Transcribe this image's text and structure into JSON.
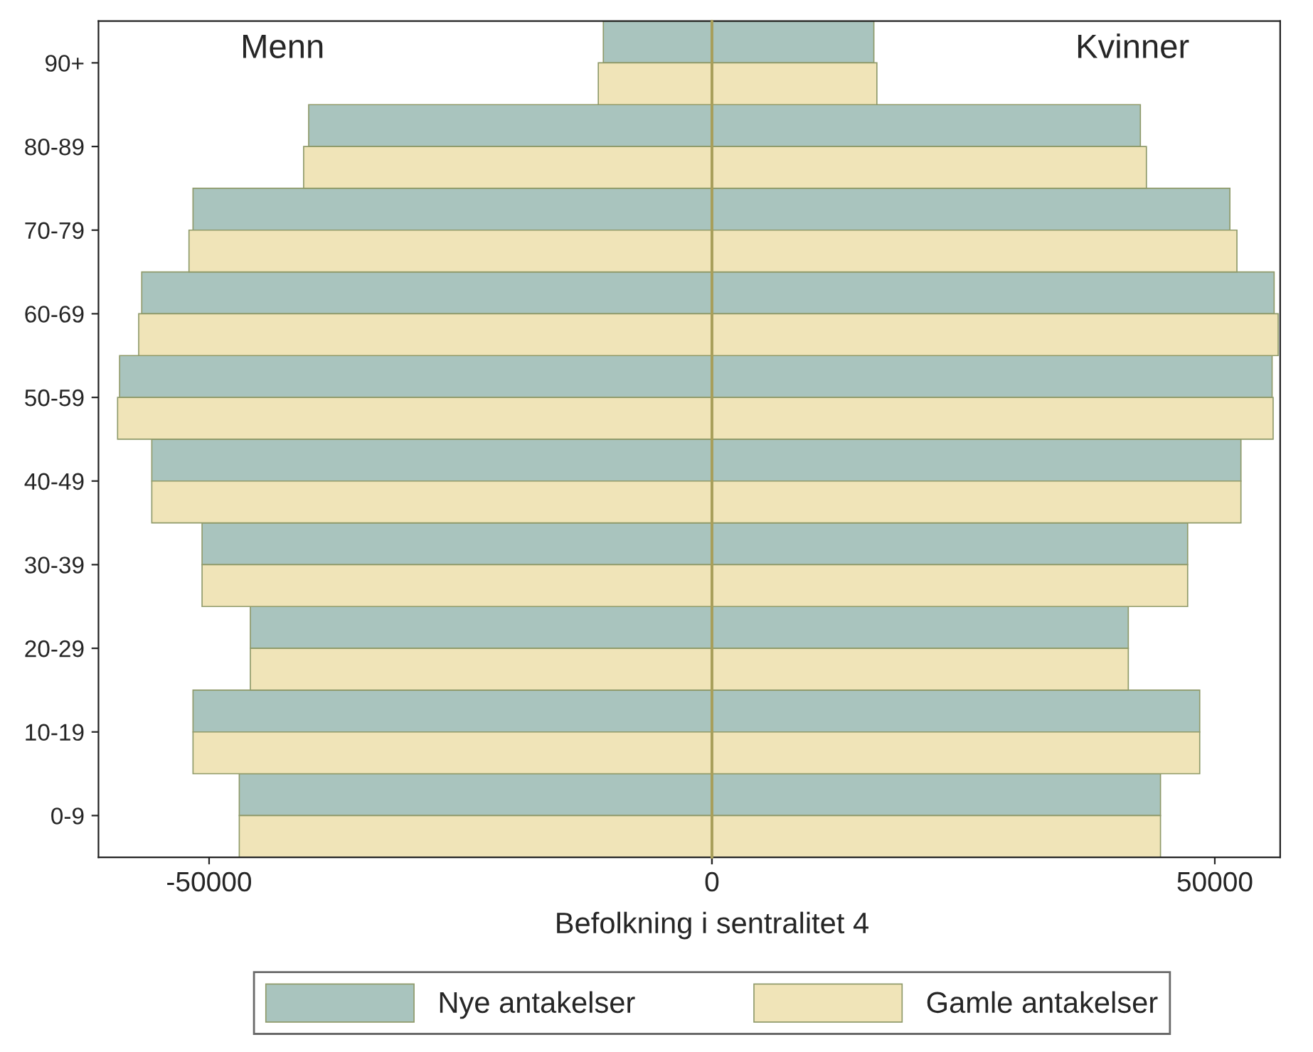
{
  "chart_data": [
    {
      "type": "bar",
      "orientation": "horizontal",
      "xlabel": "Befolkning i sentralitet 4",
      "categories": [
        "90+",
        "80-89",
        "70-79",
        "60-69",
        "50-59",
        "40-49",
        "30-39",
        "20-29",
        "10-19",
        "0-9"
      ],
      "series": [
        {
          "name": "Nye antakelser",
          "color": "#a9c4be",
          "values": [
            -10800,
            -40100,
            -51600,
            -56700,
            -58900,
            -55700,
            -50700,
            -45900,
            -51600,
            -47000
          ]
        },
        {
          "name": "Gamle antakelser",
          "color": "#f0e4b8",
          "values": [
            -11300,
            -40600,
            -52000,
            -57000,
            -59100,
            -55700,
            -50700,
            -45900,
            -51600,
            -47000
          ]
        }
      ],
      "xlim": [
        -61000,
        0
      ],
      "xticks": [
        -50000,
        0
      ],
      "ref_lines": [
        {
          "axis": "x",
          "value": 0,
          "color": "#a89f5a"
        }
      ],
      "annotations": [
        "Menn"
      ],
      "legend": "bottom"
    },
    {
      "type": "bar",
      "orientation": "horizontal",
      "series": [
        {
          "color": "#a9c4be",
          "values": [
            16100,
            42600,
            51500,
            55900,
            55700,
            52600,
            47300,
            41400,
            48500,
            44600
          ]
        },
        {
          "color": "#f0e4b8",
          "values": [
            16400,
            43200,
            52200,
            56300,
            55800,
            52600,
            47300,
            41400,
            48500,
            44600
          ]
        }
      ],
      "xlim": [
        0,
        56500
      ],
      "xticks": [
        {
          "value": 0,
          "label": null
        },
        50000
      ],
      "tick_labels": "x",
      "annotations": [
        "Kvinner"
      ]
    }
  ]
}
